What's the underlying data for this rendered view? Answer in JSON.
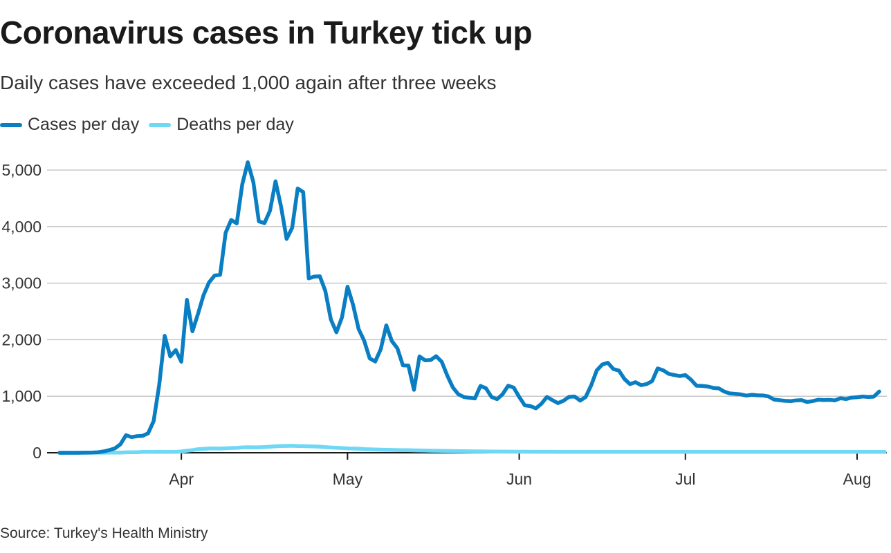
{
  "title": "Coronavirus cases in Turkey tick up",
  "subtitle": "Daily cases have exceeded 1,000 again after three weeks",
  "source": "Source: Turkey's Health Ministry",
  "colors": {
    "cases": "#0a7ec2",
    "deaths": "#6fd8f5",
    "grid": "#c8c8c8",
    "axis": "#1a1a1a"
  },
  "chart_data": {
    "type": "line",
    "x_axis": {
      "ticks": [
        {
          "label": "Apr",
          "day": 22
        },
        {
          "label": "May",
          "day": 52
        },
        {
          "label": "Jun",
          "day": 83
        },
        {
          "label": "Jul",
          "day": 113
        },
        {
          "label": "Aug",
          "day": 144
        }
      ],
      "range_days": [
        0,
        147
      ]
    },
    "y_axis": {
      "ticks": [
        {
          "label": "0",
          "value": 0
        },
        {
          "label": "1,000",
          "value": 1000
        },
        {
          "label": "2,000",
          "value": 2000
        },
        {
          "label": "3,000",
          "value": 3000
        },
        {
          "label": "4,000",
          "value": 4000
        },
        {
          "label": "5,000",
          "value": 5000
        }
      ],
      "ylim": [
        0,
        5200
      ]
    },
    "legend_position": "top-left",
    "series": [
      {
        "name": "Cases per day",
        "values": [
          0,
          0,
          0,
          0,
          1,
          2,
          5,
          10,
          24,
          48,
          78,
          150,
          310,
          277,
          293,
          299,
          343,
          561,
          1196,
          2069,
          1704,
          1815,
          1610,
          2704,
          2148,
          2456,
          2786,
          3013,
          3135,
          3148,
          3892,
          4117,
          4056,
          4747,
          5138,
          4789,
          4093,
          4062,
          4281,
          4801,
          4353,
          3783,
          3977,
          4674,
          4611,
          3083,
          3116,
          3122,
          2861,
          2357,
          2131,
          2392,
          2936,
          2615,
          2188,
          1983,
          1670,
          1614,
          1832,
          2253,
          1977,
          1848,
          1546,
          1542,
          1114,
          1704,
          1635,
          1639,
          1708,
          1610,
          1368,
          1158,
          1035,
          987,
          972,
          961,
          1182,
          1141,
          988,
          948,
          1035,
          1186,
          1153,
          987,
          839,
          827,
          786,
          867,
          987,
          930,
          878,
          920,
          989,
          995,
          922,
          987,
          1195,
          1459,
          1562,
          1592,
          1480,
          1453,
          1304,
          1214,
          1248,
          1195,
          1214,
          1268,
          1492,
          1458,
          1396,
          1374,
          1356,
          1374,
          1293,
          1186,
          1182,
          1172,
          1148,
          1141,
          1083,
          1050,
          1042,
          1033,
          1011,
          1026,
          1016,
          1014,
          996,
          941,
          929,
          918,
          913,
          927,
          930,
          897,
          914,
          938,
          931,
          935,
          927,
          964,
          950,
          976,
          983,
          995,
          986,
          991,
          1083
        ]
      },
      {
        "name": "Deaths per day",
        "values": [
          0,
          0,
          0,
          0,
          0,
          0,
          1,
          1,
          1,
          2,
          2,
          3,
          7,
          9,
          9,
          15,
          16,
          16,
          17,
          15,
          16,
          16,
          23,
          37,
          46,
          63,
          69,
          76,
          76,
          75,
          79,
          84,
          87,
          95,
          98,
          96,
          97,
          100,
          107,
          115,
          119,
          121,
          123,
          119,
          117,
          115,
          111,
          106,
          99,
          93,
          89,
          84,
          78,
          75,
          72,
          64,
          61,
          58,
          55,
          53,
          50,
          48,
          47,
          45,
          43,
          41,
          39,
          37,
          35,
          34,
          32,
          30,
          29,
          27,
          26,
          25,
          24,
          23,
          22,
          21,
          20,
          19,
          18,
          18,
          18,
          17,
          17,
          17,
          17,
          17,
          16,
          16,
          16,
          16,
          16,
          16,
          16,
          15,
          15,
          15,
          15,
          15,
          15,
          15,
          16,
          16,
          16,
          16,
          15,
          15,
          15,
          15,
          15,
          15,
          15,
          15,
          15,
          15,
          15,
          15,
          15,
          15,
          15,
          15,
          15,
          15,
          15,
          15,
          15,
          15,
          15,
          15,
          15,
          15,
          15,
          15,
          15,
          15,
          15,
          15,
          15,
          15,
          15,
          15,
          15,
          15,
          15,
          15,
          15,
          15
        ]
      }
    ]
  }
}
